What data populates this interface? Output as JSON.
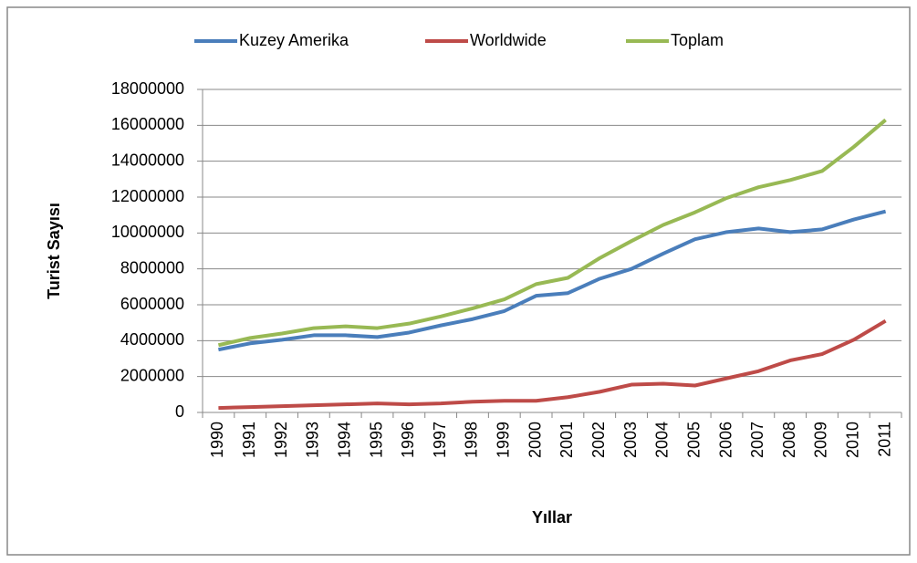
{
  "chart_data": {
    "type": "line",
    "x_label": "Yıllar",
    "y_label": "Turist Sayısı",
    "categories": [
      "1990",
      "1991",
      "1992",
      "1993",
      "1994",
      "1995",
      "1996",
      "1997",
      "1998",
      "1999",
      "2000",
      "2001",
      "2002",
      "2003",
      "2004",
      "2005",
      "2006",
      "2007",
      "2008",
      "2009",
      "2010",
      "2011"
    ],
    "series": [
      {
        "name": "Kuzey Amerika",
        "color": "#4a7ebb",
        "values": [
          3500000,
          3850000,
          4050000,
          4300000,
          4300000,
          4200000,
          4450000,
          4850000,
          5200000,
          5650000,
          6500000,
          6650000,
          7450000,
          8000000,
          8850000,
          9650000,
          10050000,
          10250000,
          10050000,
          10200000,
          10750000,
          11200000
        ]
      },
      {
        "name": "Worldwide",
        "color": "#be4b48",
        "values": [
          250000,
          300000,
          350000,
          400000,
          450000,
          500000,
          450000,
          500000,
          600000,
          650000,
          650000,
          850000,
          1150000,
          1550000,
          1600000,
          1500000,
          1900000,
          2300000,
          2900000,
          3250000,
          4050000,
          5100000
        ]
      },
      {
        "name": "Toplam",
        "color": "#98b954",
        "values": [
          3750000,
          4150000,
          4400000,
          4700000,
          4800000,
          4700000,
          4950000,
          5350000,
          5800000,
          6300000,
          7150000,
          7500000,
          8600000,
          9550000,
          10450000,
          11150000,
          11950000,
          12550000,
          12950000,
          13450000,
          14800000,
          16300000
        ]
      }
    ],
    "ylim": [
      0,
      18000000
    ],
    "yticks": [
      0,
      2000000,
      4000000,
      6000000,
      8000000,
      10000000,
      12000000,
      14000000,
      16000000,
      18000000
    ],
    "grid": true,
    "legend": "top"
  }
}
